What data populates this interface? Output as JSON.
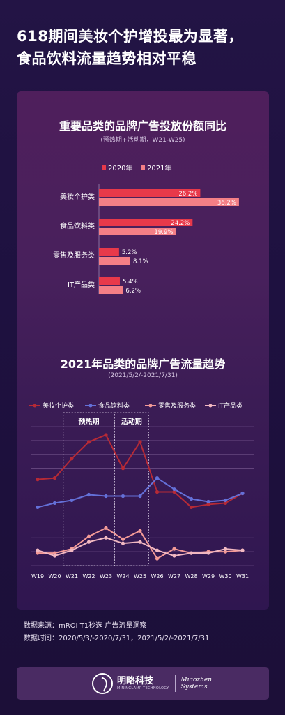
{
  "headline": {
    "line1": "618期间美妆个护增投最为显著，",
    "line2": "食品饮料流量趋势相对平稳"
  },
  "footer": {
    "source": "数据来源：mROI T1秒选  广告流量洞察",
    "period": "数据时间：2020/5/3/-2020/7/31，2021/5/2/-2021/7/31"
  },
  "brand": {
    "name_cn": "明略科技",
    "name_cn_en": "MININGLAMP TECHNOLOGY",
    "partner_line1": "Miaozhen",
    "partner_line2": "Systems"
  },
  "colors": {
    "series_2020": "#e8394a",
    "series_2021": "#f47f86",
    "line_beauty": "#b62a36",
    "line_food": "#6470d8",
    "line_retail": "#f39a97",
    "line_it": "#f2b9c2"
  },
  "chart_data": [
    {
      "type": "bar",
      "orientation": "horizontal",
      "title": "重要品类的品牌广告投放份额同比",
      "subtitle": "(预热期+活动期，W21-W25)",
      "categories": [
        "美妆个护类",
        "食品饮料类",
        "零售及服务类",
        "IT产品类"
      ],
      "series": [
        {
          "name": "2020年",
          "values": [
            26.2,
            24.2,
            5.2,
            5.4
          ],
          "labels": [
            "26.2%",
            "24.2%",
            "5.2%",
            "5.4%"
          ]
        },
        {
          "name": "2021年",
          "values": [
            36.2,
            19.9,
            8.1,
            6.2
          ],
          "labels": [
            "36.2%",
            "19.9%",
            "8.1%",
            "6.2%"
          ]
        }
      ],
      "unit": "%",
      "legend": "top"
    },
    {
      "type": "line",
      "title": "2021年品类的品牌广告流量趋势",
      "subtitle": "(2021/5/2/-2021/7/31)",
      "x": [
        "W19",
        "W20",
        "W21",
        "W22",
        "W23",
        "W24",
        "W25",
        "W26",
        "W27",
        "W28",
        "W29",
        "W30",
        "W31"
      ],
      "ylim": [
        0,
        100
      ],
      "grid": true,
      "legend": "top",
      "series": [
        {
          "name": "美妆个护类",
          "values": [
            62,
            63,
            77,
            89,
            94,
            70,
            89,
            53,
            53,
            42,
            44,
            45,
            52
          ]
        },
        {
          "name": "食品饮料类",
          "values": [
            42,
            45,
            47,
            51,
            50,
            50,
            50,
            63,
            55,
            48,
            46,
            47,
            52
          ]
        },
        {
          "name": "零售及服务类",
          "values": [
            9,
            9,
            12,
            21,
            27,
            19,
            25,
            5,
            12,
            9,
            10,
            10,
            11
          ]
        },
        {
          "name": "IT产品类",
          "values": [
            11,
            7,
            11,
            17,
            20,
            16,
            17,
            11,
            7,
            9,
            9,
            12,
            11
          ]
        }
      ],
      "annotations": [
        {
          "label": "预热期",
          "from": "W21",
          "to": "W23"
        },
        {
          "label": "活动期",
          "from": "W24",
          "to": "W25"
        }
      ]
    }
  ]
}
